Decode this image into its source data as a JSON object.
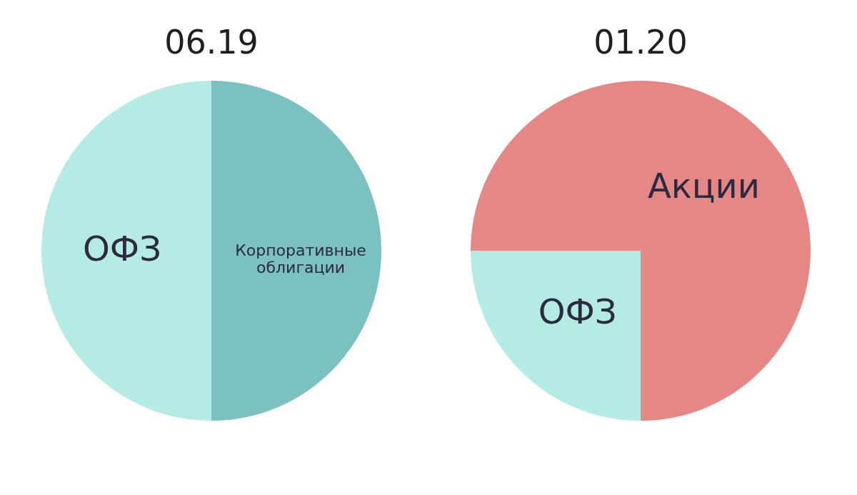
{
  "chart_data": [
    {
      "type": "pie",
      "title": "06.19",
      "categories": [
        "ОФЗ",
        "Корпоративные облигации"
      ],
      "values": [
        50,
        50
      ],
      "colors": [
        "#b5ebe5",
        "#7bc1bf"
      ],
      "data_labels": false
    },
    {
      "type": "pie",
      "title": "01.20",
      "categories": [
        "ОФЗ",
        "Акции"
      ],
      "values": [
        25,
        75
      ],
      "colors": [
        "#b5ebe5",
        "#e58784"
      ],
      "data_labels": false
    }
  ]
}
